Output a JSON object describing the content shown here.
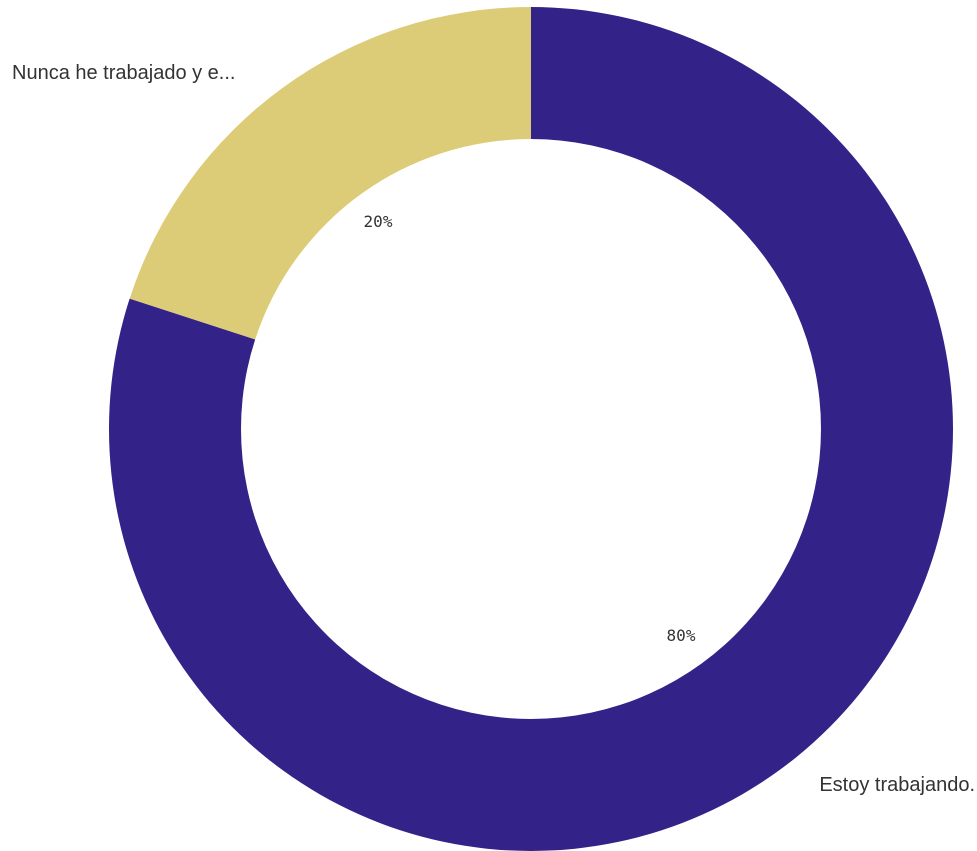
{
  "chart_data": {
    "type": "pie",
    "donut": true,
    "title": "",
    "slices": [
      {
        "label": "Estoy trabajando.",
        "value": 80,
        "value_label": "80%",
        "color": "#332288"
      },
      {
        "label": "Nunca he trabajado y e...",
        "value": 20,
        "value_label": "20%",
        "color": "#DDCC77"
      }
    ],
    "start_angle": "12 o'clock",
    "direction": "clockwise",
    "legend": "none (labels on chart)"
  }
}
